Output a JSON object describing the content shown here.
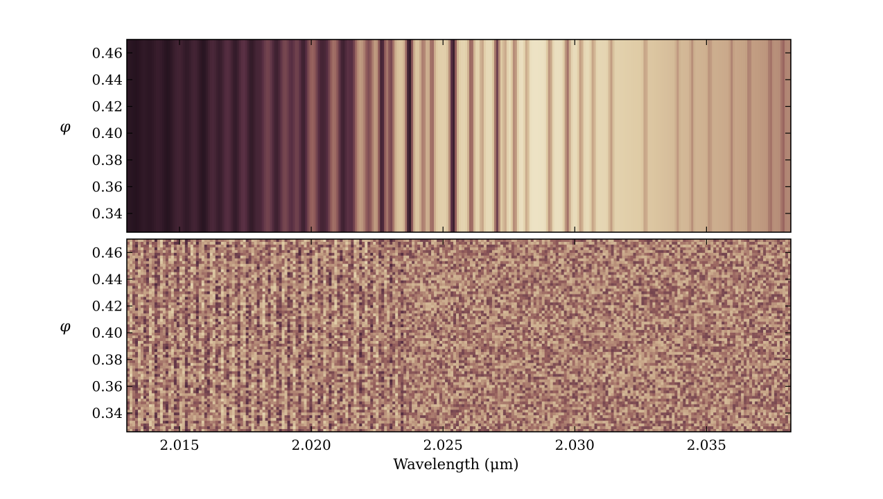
{
  "chart_data": [
    {
      "type": "heatmap",
      "panel": "top",
      "ylabel": "φ",
      "xlim": [
        2.013,
        2.0382
      ],
      "ylim": [
        0.326,
        0.47
      ],
      "yticks": [
        0.34,
        0.36,
        0.38,
        0.4,
        0.42,
        0.44,
        0.46
      ],
      "ytick_labels": [
        "0.34",
        "0.36",
        "0.38",
        "0.40",
        "0.42",
        "0.44",
        "0.46"
      ],
      "show_xtick_labels": false,
      "colormap": "pink",
      "grid": false,
      "continuum": [
        [
          2.013,
          0.05
        ],
        [
          2.016,
          0.18
        ],
        [
          2.019,
          0.36
        ],
        [
          2.0215,
          0.58
        ],
        [
          2.0235,
          0.78
        ],
        [
          2.0255,
          0.84
        ],
        [
          2.0285,
          0.93
        ],
        [
          2.0305,
          0.88
        ],
        [
          2.0325,
          0.8
        ],
        [
          2.034,
          0.72
        ],
        [
          2.036,
          0.64
        ],
        [
          2.0382,
          0.52
        ]
      ],
      "lines": [
        [
          2.01335,
          0.6,
          0.00016
        ],
        [
          2.01388,
          0.5,
          0.00014
        ],
        [
          2.01455,
          0.75,
          0.00018
        ],
        [
          2.01528,
          0.55,
          0.00015
        ],
        [
          2.0159,
          0.8,
          0.00018
        ],
        [
          2.01652,
          0.6,
          0.00015
        ],
        [
          2.01712,
          0.7,
          0.00016
        ],
        [
          2.01773,
          0.75,
          0.00016
        ],
        [
          2.01808,
          0.45,
          0.00012
        ],
        [
          2.01868,
          0.7,
          0.00016
        ],
        [
          2.01925,
          0.5,
          0.00013
        ],
        [
          2.0197,
          0.75,
          0.00014
        ],
        [
          2.02035,
          0.65,
          0.00014
        ],
        [
          2.0206,
          0.5,
          0.00012
        ],
        [
          2.0212,
          0.8,
          0.00016
        ],
        [
          2.02155,
          0.6,
          0.00012
        ],
        [
          2.02218,
          0.5,
          0.00013
        ],
        [
          2.02268,
          0.85,
          0.0001
        ],
        [
          2.02302,
          0.6,
          0.0001
        ],
        [
          2.02372,
          0.95,
          0.0001
        ],
        [
          2.02425,
          0.4,
          9e-05
        ],
        [
          2.02458,
          0.5,
          8e-05
        ],
        [
          2.02538,
          0.9,
          0.0001
        ],
        [
          2.02607,
          0.55,
          8e-05
        ],
        [
          2.02648,
          0.3,
          6e-05
        ],
        [
          2.02705,
          0.7,
          8e-05
        ],
        [
          2.02735,
          0.3,
          6e-05
        ],
        [
          2.02772,
          0.45,
          7e-05
        ],
        [
          2.02818,
          0.3,
          6e-05
        ],
        [
          2.02905,
          0.4,
          7e-05
        ],
        [
          2.02972,
          0.5,
          8e-05
        ],
        [
          2.03023,
          0.35,
          6e-05
        ],
        [
          2.0307,
          0.3,
          6e-05
        ],
        [
          2.03138,
          0.3,
          6e-05
        ],
        [
          2.03268,
          0.25,
          5e-05
        ],
        [
          2.0339,
          0.2,
          5e-05
        ],
        [
          2.03445,
          0.22,
          5e-05
        ],
        [
          2.03512,
          0.2,
          5e-05
        ],
        [
          2.03595,
          0.2,
          5e-05
        ],
        [
          2.03662,
          0.2,
          5e-05
        ],
        [
          2.03742,
          0.22,
          5e-05
        ],
        [
          2.0379,
          0.25,
          5e-05
        ]
      ]
    },
    {
      "type": "heatmap",
      "panel": "bottom",
      "ylabel": "φ",
      "xlabel": "Wavelength (μm)",
      "xlim": [
        2.013,
        2.0382
      ],
      "ylim": [
        0.326,
        0.47
      ],
      "xticks": [
        2.015,
        2.02,
        2.025,
        2.03,
        2.035
      ],
      "xtick_labels": [
        "2.015",
        "2.020",
        "2.025",
        "2.030",
        "2.035"
      ],
      "yticks": [
        0.34,
        0.36,
        0.38,
        0.4,
        0.42,
        0.44,
        0.46
      ],
      "ytick_labels": [
        "0.34",
        "0.36",
        "0.38",
        "0.40",
        "0.42",
        "0.44",
        "0.46"
      ],
      "colormap": "pink",
      "grid": false,
      "mean_level": 0.5,
      "noise_amplitude": 0.22,
      "residual_structure_range": [
        2.013,
        2.0235
      ]
    }
  ],
  "colormap_stops": [
    "#1e0f1a",
    "#5a3044",
    "#96605d",
    "#c39f83",
    "#dfcba5",
    "#f4efd5"
  ]
}
